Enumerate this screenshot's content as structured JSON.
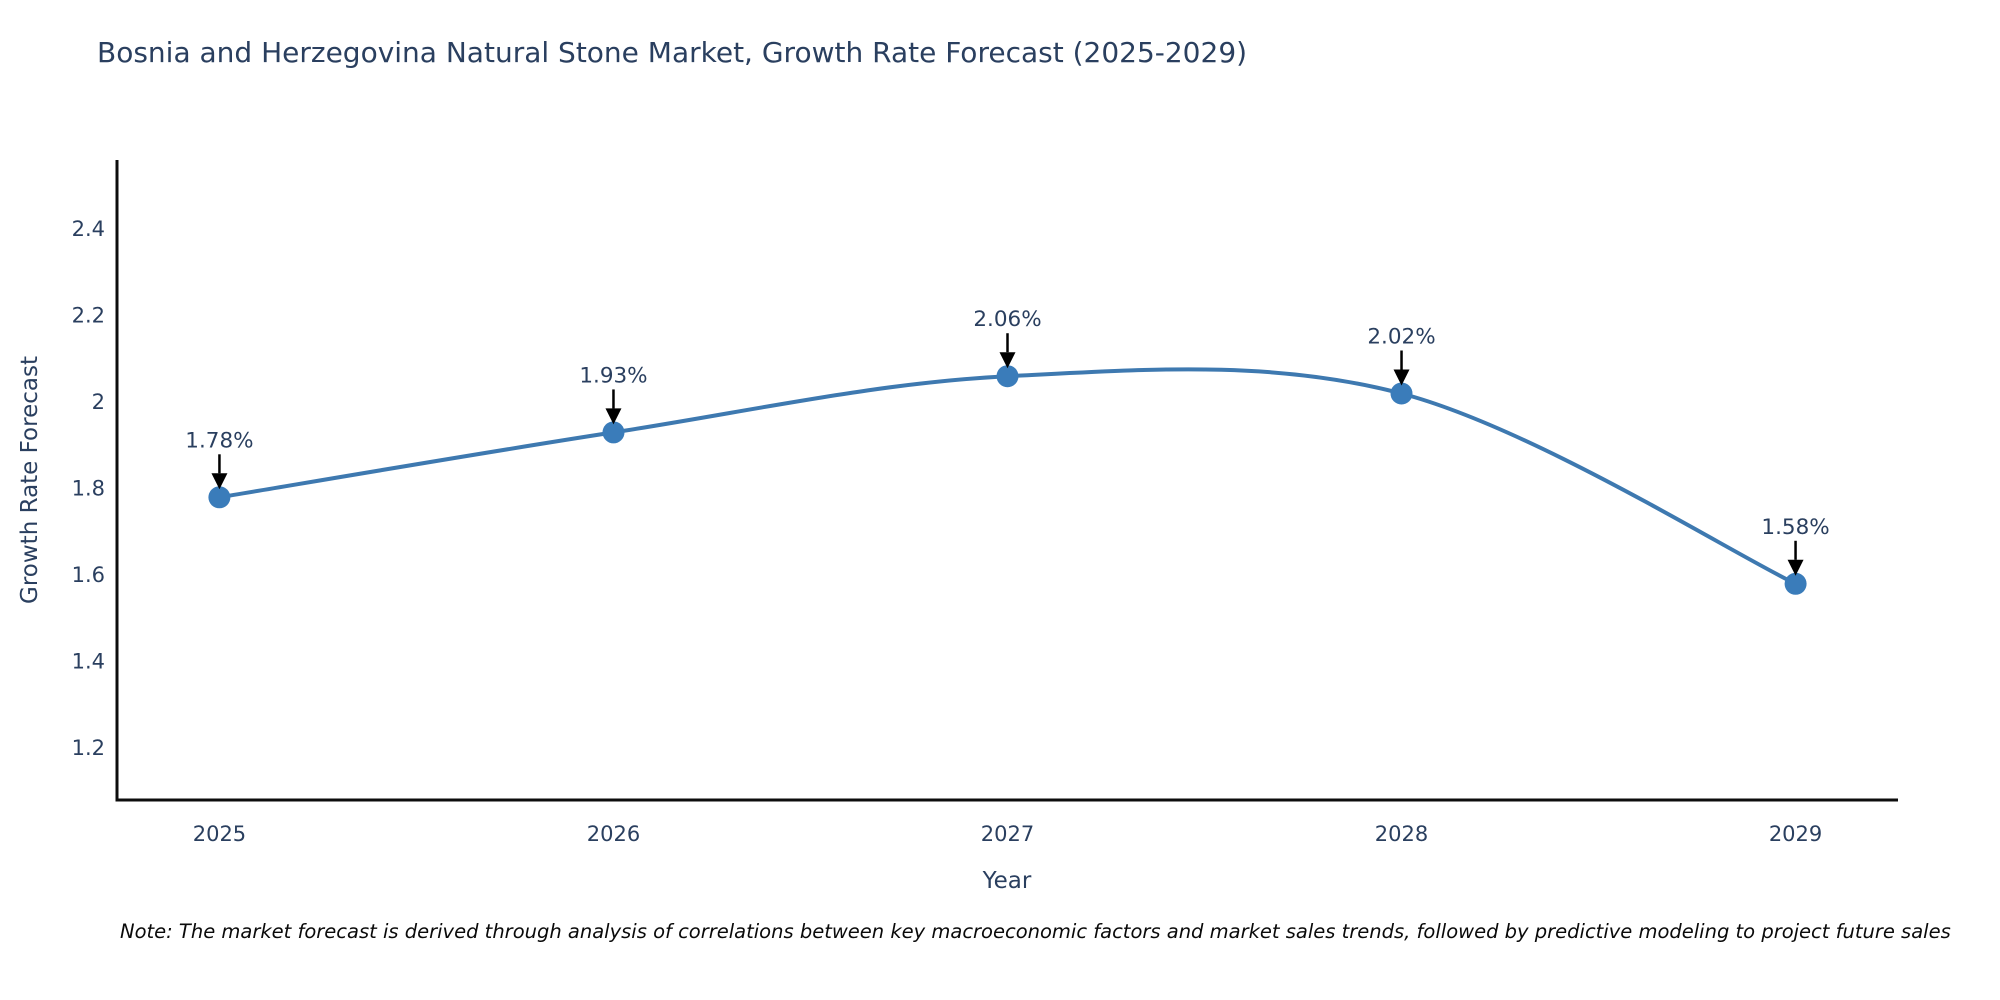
{
  "title": "Bosnia and Herzegovina Natural Stone Market, Growth Rate Forecast (2025-2029)",
  "note": "Note: The market forecast is derived through analysis of correlations between key macroeconomic factors and market sales trends, followed by predictive modeling to project future sales",
  "chart_data": {
    "type": "line",
    "title": "Bosnia and Herzegovina Natural Stone Market, Growth Rate Forecast (2025-2029)",
    "x": [
      2025,
      2026,
      2027,
      2028,
      2029
    ],
    "xtick_labels": [
      "2025",
      "2026",
      "2027",
      "2028",
      "2029"
    ],
    "values": [
      1.78,
      1.93,
      2.06,
      2.02,
      1.58
    ],
    "point_labels": [
      "1.78%",
      "1.93%",
      "2.06%",
      "2.02%",
      "1.58%"
    ],
    "xlabel": "Year",
    "ylabel": "Growth Rate Forecast",
    "xlim": [
      2024.74,
      2029.26
    ],
    "ylim": [
      1.08,
      2.56
    ],
    "yticks": [
      1.2,
      1.4,
      1.6,
      1.8,
      2,
      2.2,
      2.4
    ],
    "ytick_labels": [
      "1.2",
      "1.4",
      "1.6",
      "1.8",
      "2",
      "2.2",
      "2.4"
    ],
    "grid": false,
    "legend": "none",
    "line_shape": "spline",
    "colors": {
      "line": "#3e79b0",
      "marker": "#3a7cba",
      "axis": "#0d0d0d",
      "text": "#2a3f5f",
      "arrow": "#000000"
    }
  }
}
